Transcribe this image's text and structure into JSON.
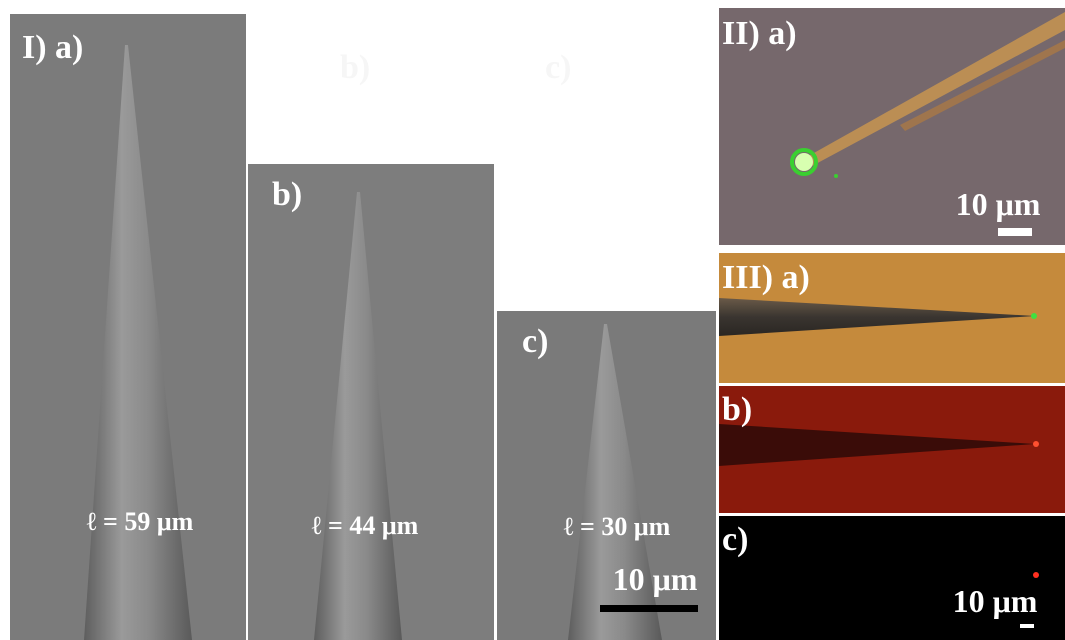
{
  "panel_I": {
    "a": {
      "label": "I) a)",
      "length": "ℓ = 59 μm"
    },
    "b": {
      "label": "b)",
      "length": "ℓ = 44 μm"
    },
    "c": {
      "label": "c)",
      "length": "ℓ = 30 μm",
      "scale_bar": "10 μm"
    }
  },
  "faint_labels": [
    "b)",
    "c)"
  ],
  "panel_II": {
    "a": {
      "label": "II) a)",
      "scale_bar": "10 μm"
    }
  },
  "panel_III": {
    "a": {
      "label": "III) a)"
    },
    "b": {
      "label": "b)"
    },
    "c": {
      "label": "c)",
      "scale_bar": "10 μm"
    }
  }
}
